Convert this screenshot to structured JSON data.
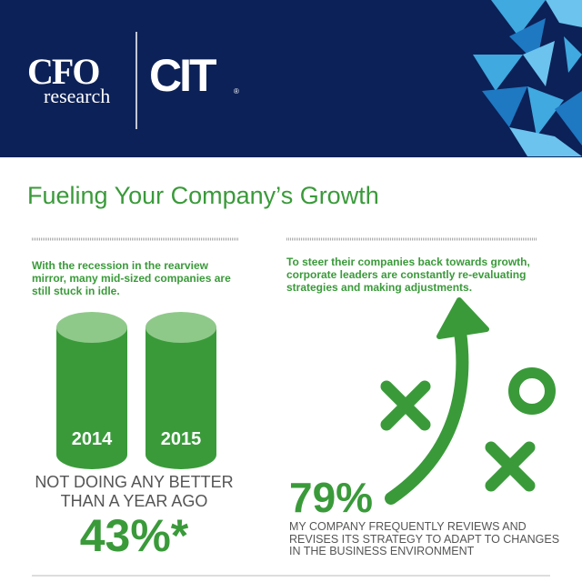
{
  "header": {
    "logo_cfo": "CFO",
    "logo_research": "research",
    "logo_cit": "CIT",
    "logo_mark": "®"
  },
  "title": "Fueling Your Company’s Growth",
  "left": {
    "intro": "With the recession in the rearview mirror, many mid-sized companies are still stuck in idle.",
    "years": [
      "2014",
      "2015"
    ],
    "caption": "NOT DOING ANY BETTER THAN A YEAR AGO",
    "stat": "43%*"
  },
  "right": {
    "intro": "To steer their companies back towards growth, corporate leaders are constantly re-evaluating strategies and making adjustments.",
    "stat": "79%",
    "caption": "MY COMPANY FREQUENTLY REVIEWS AND REVISES ITS STRATEGY TO ADAPT TO CHANGES IN THE BUSINESS ENVIRONMENT"
  }
}
